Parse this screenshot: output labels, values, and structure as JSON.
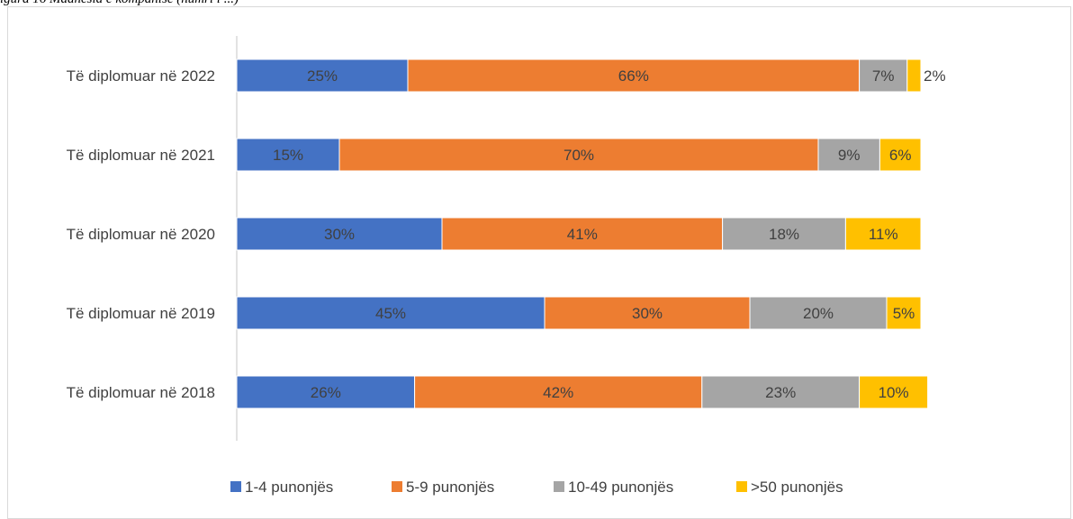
{
  "caption": "igura 16 Madhësia e kompanisë (numri i ...)",
  "colors": {
    "series1": "#4472c4",
    "series2": "#ed7d31",
    "series3": "#a5a5a5",
    "series4": "#ffc000",
    "axis": "#d9d9d9",
    "text": "#404040"
  },
  "chart_data": {
    "type": "bar",
    "orientation": "horizontal",
    "stacked": "percent",
    "categories": [
      "Të diplomuar në 2022",
      "Të diplomuar në 2021",
      "Të diplomuar në 2020",
      "Të diplomuar në 2019",
      "Të diplomuar në 2018"
    ],
    "series": [
      {
        "name": "1-4 punonjës",
        "values": [
          25,
          15,
          30,
          45,
          26
        ],
        "labels": [
          "25%",
          "15%",
          "30%",
          "45%",
          "26%"
        ]
      },
      {
        "name": "5-9 punonjës",
        "values": [
          66,
          70,
          41,
          30,
          42
        ],
        "labels": [
          "66%",
          "70%",
          "41%",
          "30%",
          "42%"
        ]
      },
      {
        "name": "10-49 punonjës",
        "values": [
          7,
          9,
          18,
          20,
          23
        ],
        "labels": [
          "7%",
          "9%",
          "18%",
          "20%",
          "23%"
        ]
      },
      {
        "name": ">50 punonjës",
        "values": [
          2,
          6,
          11,
          5,
          10
        ],
        "labels": [
          "2%",
          "6%",
          "11%",
          "5%",
          "10%"
        ]
      }
    ],
    "title": "",
    "xlabel": "",
    "ylabel": "",
    "xlim": [
      0,
      100
    ],
    "grid": false,
    "legend_position": "bottom"
  }
}
